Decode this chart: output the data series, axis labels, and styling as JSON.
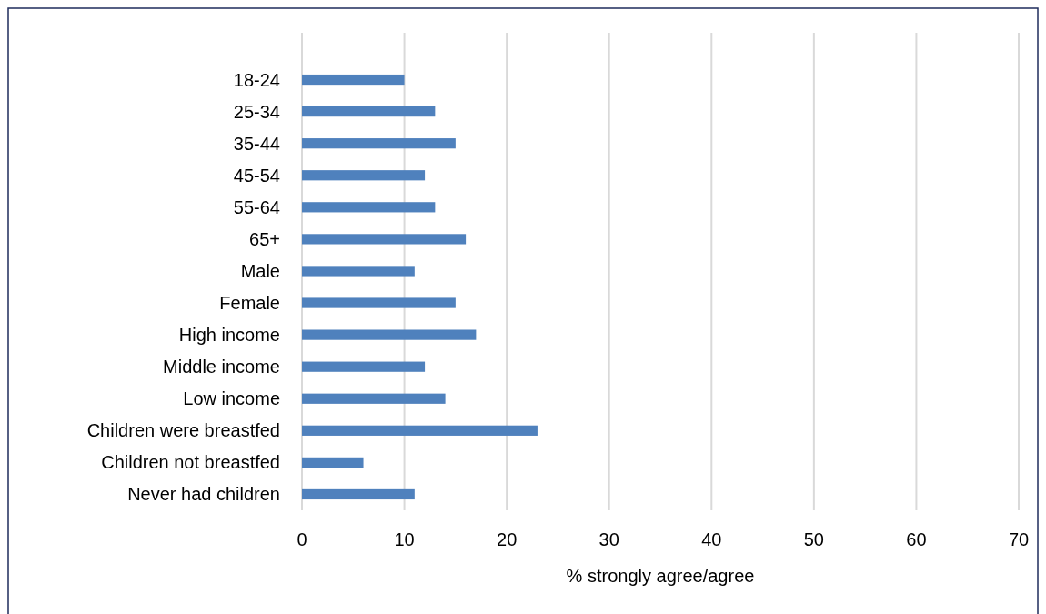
{
  "chart_data": {
    "type": "bar",
    "orientation": "horizontal",
    "xlabel": "% strongly agree/agree",
    "categories": [
      "18-24",
      "25-34",
      "35-44",
      "45-54",
      "55-64",
      "65+",
      "Male",
      "Female",
      "High income",
      "Middle income",
      "Low income",
      "Children were breastfed",
      "Children not breastfed",
      "Never had children"
    ],
    "values": [
      10,
      13,
      15,
      12,
      13,
      16,
      11,
      15,
      17,
      12,
      14,
      23,
      6,
      11
    ],
    "color": "#4f81bd",
    "xlim": [
      0,
      70
    ],
    "xticks": [
      0,
      10,
      20,
      30,
      40,
      50,
      60,
      70
    ],
    "grid": "x"
  }
}
